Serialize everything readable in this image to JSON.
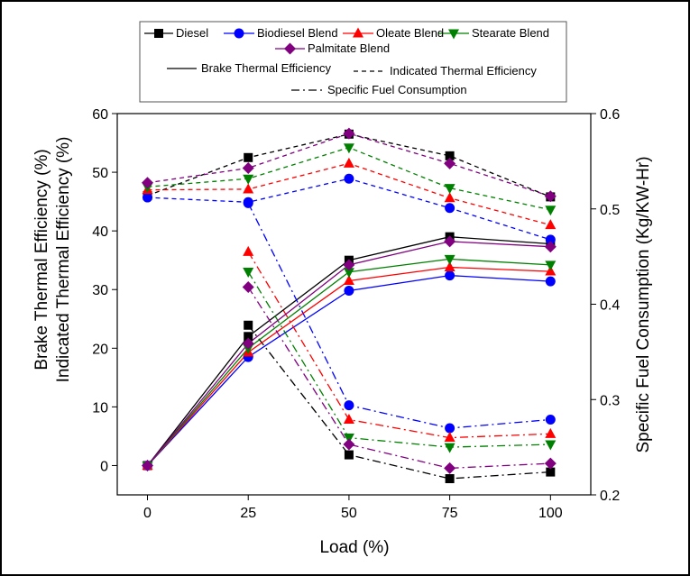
{
  "chart_data": {
    "type": "line",
    "xlabel": "Load (%)",
    "ylabel_left_line1": "Brake Thermal Efficiency (%)",
    "ylabel_left_line2": "Indicated Thermal Efficiency (%)",
    "ylabel_right": "Specific Fuel Consumption (Kg/KW-Hr)",
    "x_ticks": [
      0,
      25,
      50,
      75,
      100
    ],
    "y_left_ticks": [
      0,
      10,
      20,
      30,
      40,
      50,
      60
    ],
    "y_right_ticks": [
      "0.2",
      "0.3",
      "0.4",
      "0.5",
      "0.6"
    ],
    "xlim": [
      -7.5,
      110
    ],
    "ylim_left": [
      -5,
      60
    ],
    "ylim_right": [
      0.2,
      0.6
    ],
    "legend": {
      "fuels": [
        "Diesel",
        "Biodiesel Blend",
        "Oleate Blend",
        "Stearate Blend",
        "Palmitate Blend"
      ],
      "line_styles": [
        "Brake Thermal Efficiency",
        "Indicated Thermal Efficiency",
        "Specific Fuel Consumption"
      ]
    },
    "fuels": [
      {
        "name": "Diesel",
        "color": "#000000",
        "marker": "square",
        "bte": [
          0,
          22,
          35,
          39,
          37.8
        ],
        "ite": [
          46,
          52.5,
          56.5,
          52.8,
          45.8
        ],
        "sfc_x": [
          25,
          50,
          75,
          100
        ],
        "sfc": [
          0.378,
          0.242,
          0.217,
          0.224
        ]
      },
      {
        "name": "Biodiesel Blend",
        "color": "#0000ff",
        "marker": "circle",
        "bte": [
          0,
          18.5,
          29.8,
          32.4,
          31.4
        ],
        "ite": [
          45.7,
          44.9,
          48.9,
          43.9,
          38.5
        ],
        "sfc_x": [
          25,
          50,
          75,
          100
        ],
        "sfc": [
          0.506,
          0.294,
          0.27,
          0.279
        ]
      },
      {
        "name": "Oleate Blend",
        "color": "#ff0000",
        "marker": "triangle-up",
        "bte": [
          0,
          19.3,
          31.5,
          33.8,
          33.1
        ],
        "ite": [
          47,
          47.1,
          51.5,
          45.6,
          41
        ],
        "sfc_x": [
          25,
          50,
          75,
          100
        ],
        "sfc": [
          0.455,
          0.279,
          0.26,
          0.264
        ]
      },
      {
        "name": "Stearate Blend",
        "color": "#008000",
        "marker": "triangle-down",
        "bte": [
          0,
          20,
          33,
          35.2,
          34.2
        ],
        "ite": [
          47.5,
          48.9,
          54.2,
          47.3,
          43.6
        ],
        "sfc_x": [
          25,
          50,
          75,
          100
        ],
        "sfc": [
          0.434,
          0.26,
          0.25,
          0.253
        ]
      },
      {
        "name": "Palmitate Blend",
        "color": "#800080",
        "marker": "diamond",
        "bte": [
          0,
          20.8,
          34.2,
          38.2,
          37.3
        ],
        "ite": [
          48.2,
          50.7,
          56.6,
          51.5,
          45.9
        ],
        "sfc_x": [
          25,
          50,
          75,
          100
        ],
        "sfc": [
          0.418,
          0.253,
          0.228,
          0.233
        ]
      }
    ]
  }
}
